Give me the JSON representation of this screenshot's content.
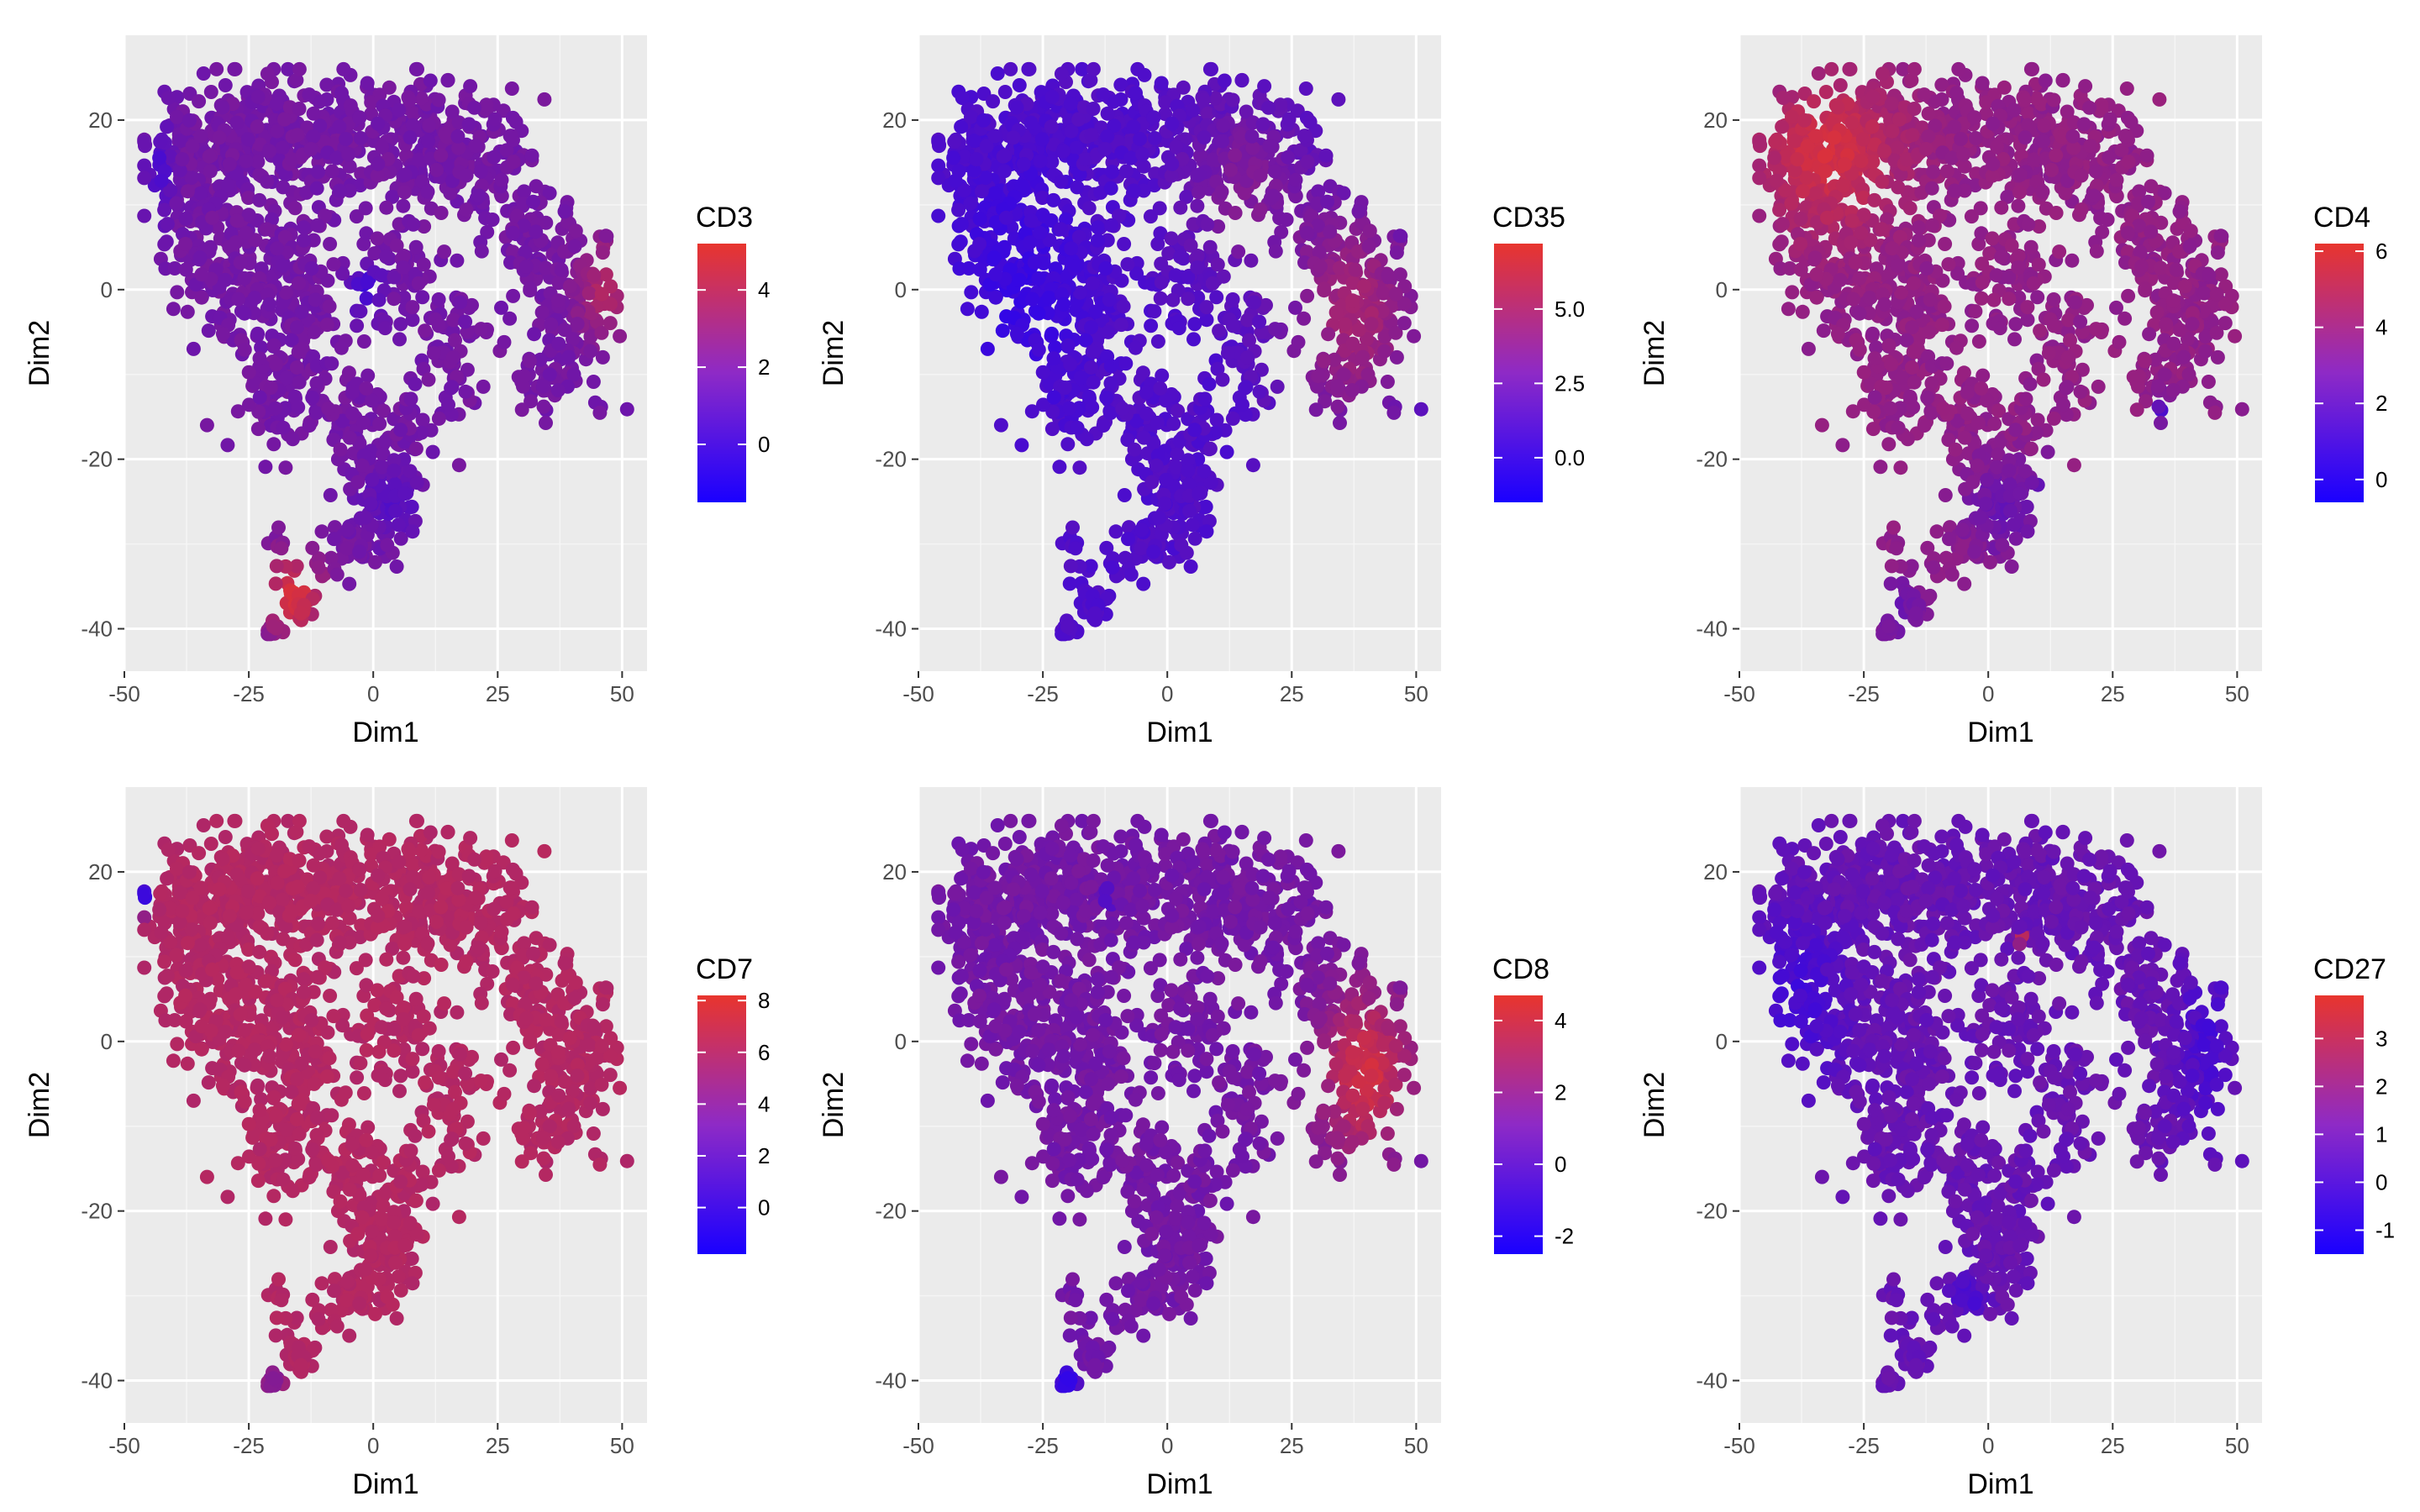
{
  "panel_order": [
    "CD3",
    "CD35",
    "CD4",
    "CD7",
    "CD8",
    "CD27"
  ],
  "chart_data": [
    {
      "type": "scatter",
      "title": "",
      "xlabel": "Dim1",
      "ylabel": "Dim2",
      "xlim": [
        -50,
        55
      ],
      "ylim": [
        -45,
        30
      ],
      "xticks": [
        "-50",
        "-25",
        "0",
        "25",
        "50"
      ],
      "yticks": [
        "-40",
        "-20",
        "0",
        "20"
      ],
      "grid": true,
      "legend": {
        "title": "CD3",
        "range": [
          -1.5,
          5.2
        ],
        "ticks": [
          "0",
          "2",
          "4"
        ],
        "low_color": "#1a00ff",
        "high_color": "#e8352d",
        "placement": "right"
      },
      "point_summary": "≈1,500 cells in t-SNE embedding; mostly purple (≈1–2); high (red) cluster at Dim1≈-20..-10, Dim2≈-40..-28 and at Dim1≈45, Dim2≈0; low (blue) cells near Dim1≈0, Dim2≈0 and Dim1≈0..10, Dim2≈-25"
    },
    {
      "type": "scatter",
      "title": "",
      "xlabel": "Dim1",
      "ylabel": "Dim2",
      "xlim": [
        -50,
        55
      ],
      "ylim": [
        -45,
        30
      ],
      "xticks": [
        "-50",
        "-25",
        "0",
        "25",
        "50"
      ],
      "yticks": [
        "-40",
        "-20",
        "0",
        "20"
      ],
      "grid": true,
      "legend": {
        "title": "CD35",
        "range": [
          -1.5,
          7.2
        ],
        "ticks": [
          "0.0",
          "2.5",
          "5.0"
        ],
        "low_color": "#1a00ff",
        "high_color": "#e8352d",
        "placement": "right"
      },
      "point_summary": "left half (Dim1 < 0) low/blue-violet; right cluster Dim1≈25..50 elevated (red-pink ≈4–6)"
    },
    {
      "type": "scatter",
      "title": "",
      "xlabel": "Dim1",
      "ylabel": "Dim2",
      "xlim": [
        -50,
        55
      ],
      "ylim": [
        -45,
        30
      ],
      "xticks": [
        "-50",
        "-25",
        "0",
        "25",
        "50"
      ],
      "yticks": [
        "-40",
        "-20",
        "0",
        "20"
      ],
      "grid": true,
      "legend": {
        "title": "CD4",
        "range": [
          -0.6,
          6.2
        ],
        "ticks": [
          "0",
          "2",
          "4",
          "6"
        ],
        "low_color": "#1a00ff",
        "high_color": "#e8352d",
        "placement": "right"
      },
      "point_summary": "upper-left region (Dim1≈-45..-20, Dim2≈10..25) high/red; lower branch and bottom clusters lower/purple"
    },
    {
      "type": "scatter",
      "title": "",
      "xlabel": "Dim1",
      "ylabel": "Dim2",
      "xlim": [
        -50,
        55
      ],
      "ylim": [
        -45,
        30
      ],
      "xticks": [
        "-50",
        "-25",
        "0",
        "25",
        "50"
      ],
      "yticks": [
        "-40",
        "-20",
        "0",
        "20"
      ],
      "grid": true,
      "legend": {
        "title": "CD7",
        "range": [
          -1.8,
          8.2
        ],
        "ticks": [
          "0",
          "2",
          "4",
          "6",
          "8"
        ],
        "low_color": "#1a00ff",
        "high_color": "#e8352d",
        "placement": "right"
      },
      "point_summary": "nearly uniform magenta (≈5–6); small blue group at Dim1≈-45, Dim2≈17"
    },
    {
      "type": "scatter",
      "title": "",
      "xlabel": "Dim1",
      "ylabel": "Dim2",
      "xlim": [
        -50,
        55
      ],
      "ylim": [
        -45,
        30
      ],
      "xticks": [
        "-50",
        "-25",
        "0",
        "25",
        "50"
      ],
      "yticks": [
        "-40",
        "-20",
        "0",
        "20"
      ],
      "grid": true,
      "legend": {
        "title": "CD8",
        "range": [
          -2.5,
          4.7
        ],
        "ticks": [
          "-2",
          "0",
          "2",
          "4"
        ],
        "low_color": "#1a00ff",
        "high_color": "#e8352d",
        "placement": "right"
      },
      "point_summary": "mostly purple (≈0–1); right cluster Dim1≈25..50, Dim2≈-15..5 high/red"
    },
    {
      "type": "scatter",
      "title": "",
      "xlabel": "Dim1",
      "ylabel": "Dim2",
      "xlim": [
        -50,
        55
      ],
      "ylim": [
        -45,
        30
      ],
      "xticks": [
        "-50",
        "-25",
        "0",
        "25",
        "50"
      ],
      "yticks": [
        "-40",
        "-20",
        "0",
        "20"
      ],
      "grid": true,
      "legend": {
        "title": "CD27",
        "range": [
          -1.5,
          3.9
        ],
        "ticks": [
          "-1",
          "0",
          "1",
          "2",
          "3"
        ],
        "low_color": "#1a00ff",
        "high_color": "#e8352d",
        "placement": "right"
      },
      "point_summary": "mostly violet (≈0–1); isolated red cells at Dim1≈7, Dim2≈12 and Dim1≈17, Dim2≈-17"
    }
  ]
}
